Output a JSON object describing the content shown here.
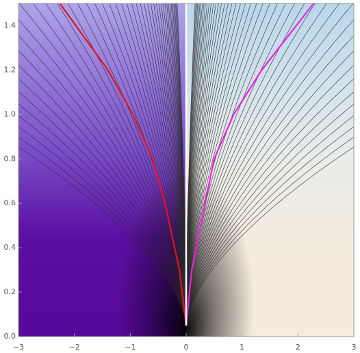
{
  "chart_data": {
    "type": "contour",
    "xlim": [
      -3,
      3
    ],
    "ylim": [
      0,
      1.5
    ],
    "xticks": [
      {
        "value": -3,
        "label": "−3"
      },
      {
        "value": -2,
        "label": "−2"
      },
      {
        "value": -1,
        "label": "−1"
      },
      0,
      1,
      2,
      3
    ],
    "yticks": [
      {
        "value": 0,
        "label": "0.0"
      },
      0.2,
      0.4,
      0.6,
      0.8,
      {
        "value": 1,
        "label": "1.0"
      },
      1.2,
      1.4
    ],
    "series": [
      {
        "color": "#e0161b",
        "x": [
          0,
          -0.12,
          -0.38,
          -0.6,
          -0.95,
          -1.4,
          -2.26
        ],
        "values": [
          0.05,
          0.3,
          0.6,
          0.8,
          1.0,
          1.2,
          1.5
        ]
      },
      {
        "color": "#ee1ee6",
        "x": [
          0,
          0.1,
          0.34,
          0.5,
          0.85,
          1.35,
          2.28
        ],
        "values": [
          0.05,
          0.3,
          0.6,
          0.8,
          1.0,
          1.2,
          1.5
        ]
      },
      {
        "color": "#ffffff",
        "x": [
          0,
          0
        ],
        "values": [
          0.05,
          1.5
        ]
      }
    ]
  }
}
